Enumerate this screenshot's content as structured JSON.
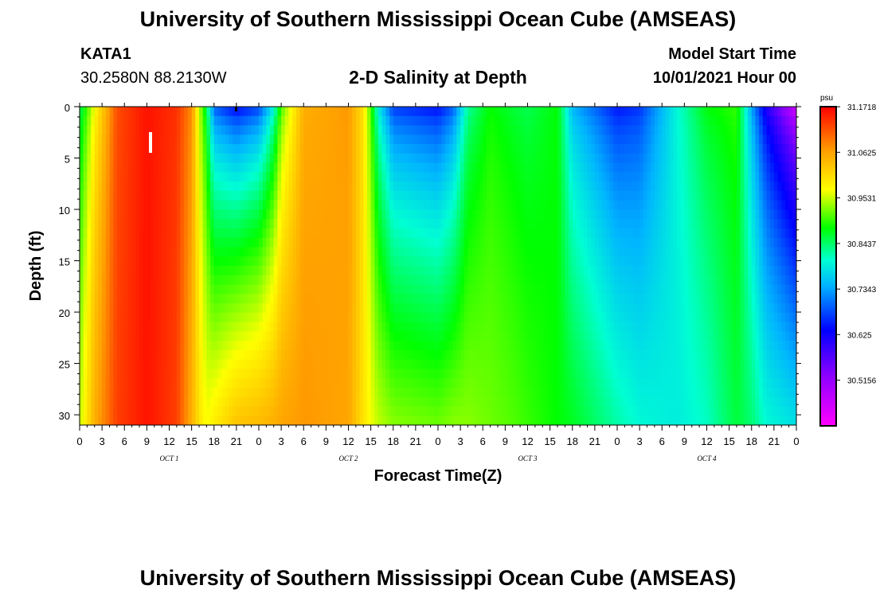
{
  "header": {
    "title": "University of Southern Mississippi Ocean Cube (AMSEAS)",
    "station": "KATA1",
    "coords": "30.2580N  88.2130W",
    "subtitle": "2-D Salinity at Depth",
    "model_start_label": "Model Start Time",
    "model_start_value": "10/01/2021 Hour 00"
  },
  "footer": {
    "title": "University of Southern Mississippi Ocean Cube (AMSEAS)"
  },
  "chart_data": {
    "type": "heatmap",
    "title": "2-D Salinity at Depth",
    "xlabel": "Forecast Time(Z)",
    "ylabel": "Depth (ft)",
    "x_unit": "hours since 10/01/2021 00Z",
    "xlim": [
      0,
      96
    ],
    "ylim": [
      31,
      0
    ],
    "x_tick_step_hours": 3,
    "x_tick_labels": [
      "0",
      "3",
      "6",
      "9",
      "12",
      "15",
      "18",
      "21",
      "0",
      "3",
      "6",
      "9",
      "12",
      "15",
      "18",
      "21",
      "0",
      "3",
      "6",
      "9",
      "12",
      "15",
      "18",
      "21",
      "0",
      "3",
      "6",
      "9",
      "12",
      "15",
      "18",
      "21",
      "0"
    ],
    "y_ticks": [
      0,
      5,
      10,
      15,
      20,
      25,
      30
    ],
    "y_tick_labels": [
      "0",
      "5",
      "10",
      "15",
      "20",
      "25",
      "30"
    ],
    "day_labels": [
      {
        "text": "OCT 1",
        "hour": 12
      },
      {
        "text": "OCT 2",
        "hour": 36
      },
      {
        "text": "OCT 3",
        "hour": 60
      },
      {
        "text": "OCT 4",
        "hour": 84
      }
    ],
    "colorbar": {
      "unit": "psu",
      "min": 30.406,
      "max": 31.172,
      "tick_values": [
        31.1718,
        31.0625,
        30.9531,
        30.8437,
        30.7343,
        30.625,
        30.5156
      ],
      "tick_labels": [
        "31.1718",
        "31.0625",
        "30.9531",
        "30.8437",
        "30.7343",
        "30.625",
        "30.5156"
      ]
    },
    "series": [
      {
        "name": "salinity (psu) vs hour, near surface (0 ft)",
        "x": [
          0,
          1,
          2,
          5,
          9,
          13,
          15,
          16,
          17,
          18,
          21,
          24,
          26,
          27,
          30,
          36,
          38,
          39,
          40,
          42,
          48,
          50,
          52,
          55,
          58,
          60,
          64,
          66,
          72,
          75,
          80,
          84,
          88,
          90,
          92,
          96
        ],
        "values": [
          30.84,
          30.9,
          30.97,
          31.12,
          31.16,
          31.14,
          31.08,
          30.95,
          30.85,
          30.68,
          30.62,
          30.66,
          30.78,
          30.9,
          31.05,
          31.07,
          31.0,
          30.9,
          30.78,
          30.66,
          30.63,
          30.68,
          30.82,
          30.88,
          30.86,
          30.85,
          30.88,
          30.74,
          30.64,
          30.66,
          30.8,
          30.88,
          30.9,
          30.73,
          30.6,
          30.44
        ]
      },
      {
        "name": "salinity (psu) vs hour, 30 ft",
        "x": [
          0,
          1,
          2,
          5,
          9,
          13,
          15,
          16,
          17,
          18,
          21,
          24,
          26,
          27,
          30,
          36,
          38,
          39,
          40,
          42,
          48,
          50,
          52,
          55,
          58,
          60,
          64,
          66,
          72,
          75,
          80,
          84,
          88,
          90,
          92,
          96
        ],
        "values": [
          30.95,
          31.0,
          31.05,
          31.13,
          31.16,
          31.13,
          31.05,
          31.0,
          30.97,
          30.99,
          31.03,
          31.04,
          31.05,
          31.06,
          31.07,
          31.06,
          31.0,
          30.97,
          30.95,
          30.93,
          30.92,
          30.93,
          30.93,
          30.92,
          30.91,
          30.9,
          30.88,
          30.87,
          30.82,
          30.8,
          30.79,
          30.81,
          30.86,
          30.84,
          30.8,
          30.78
        ]
      }
    ]
  }
}
